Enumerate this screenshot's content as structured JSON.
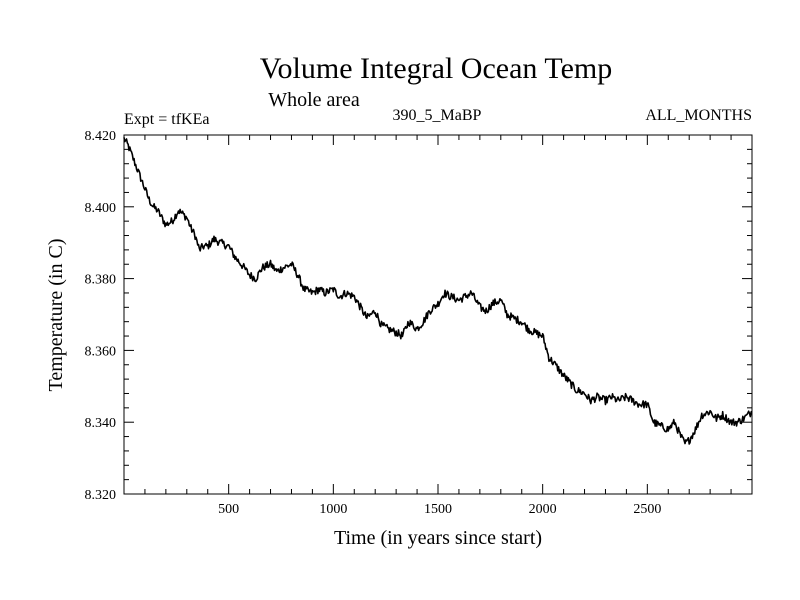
{
  "chart_data": {
    "type": "line",
    "title": "Volume Integral Ocean Temp",
    "subtitle": "Whole area",
    "annotations": {
      "left": "Expt = tfKEa",
      "center": "390_5_MaBP",
      "right": "ALL_MONTHS"
    },
    "xlabel": "Time (in years since start)",
    "ylabel": "Temperature (in C)",
    "xlim": [
      0,
      3000
    ],
    "ylim": [
      8.32,
      8.42
    ],
    "x_ticks": [
      500,
      1000,
      1500,
      2000,
      2500
    ],
    "x_tick_labels": [
      "500",
      "1000",
      "1500",
      "2000",
      "2500"
    ],
    "y_ticks": [
      8.32,
      8.34,
      8.36,
      8.38,
      8.4,
      8.42
    ],
    "y_tick_labels": [
      "8.320",
      "8.340",
      "8.360",
      "8.380",
      "8.400",
      "8.420"
    ],
    "grid": false,
    "series": [
      {
        "color": "#000000",
        "x": [
          0,
          20,
          40,
          60,
          80,
          100,
          120,
          140,
          160,
          180,
          200,
          230,
          260,
          280,
          300,
          320,
          340,
          360,
          380,
          400,
          430,
          460,
          500,
          530,
          560,
          600,
          630,
          660,
          700,
          730,
          760,
          800,
          830,
          860,
          900,
          930,
          960,
          1000,
          1030,
          1060,
          1100,
          1130,
          1160,
          1200,
          1230,
          1260,
          1300,
          1330,
          1360,
          1400,
          1430,
          1460,
          1500,
          1530,
          1560,
          1600,
          1630,
          1660,
          1700,
          1730,
          1760,
          1800,
          1830,
          1860,
          1900,
          1930,
          1960,
          2000,
          2030,
          2060,
          2100,
          2130,
          2160,
          2200,
          2230,
          2260,
          2300,
          2330,
          2360,
          2400,
          2430,
          2460,
          2500,
          2530,
          2560,
          2600,
          2630,
          2660,
          2680,
          2700,
          2730,
          2760,
          2800,
          2830,
          2860,
          2900,
          2930,
          2960,
          3000
        ],
        "y": [
          8.419,
          8.417,
          8.414,
          8.411,
          8.408,
          8.405,
          8.402,
          8.4,
          8.399,
          8.397,
          8.395,
          8.396,
          8.399,
          8.398,
          8.397,
          8.394,
          8.392,
          8.388,
          8.389,
          8.389,
          8.391,
          8.39,
          8.389,
          8.386,
          8.384,
          8.381,
          8.38,
          8.383,
          8.384,
          8.382,
          8.383,
          8.384,
          8.381,
          8.377,
          8.376,
          8.377,
          8.376,
          8.377,
          8.375,
          8.376,
          8.375,
          8.372,
          8.369,
          8.371,
          8.367,
          8.366,
          8.365,
          8.364,
          8.368,
          8.366,
          8.368,
          8.371,
          8.373,
          8.376,
          8.375,
          8.374,
          8.375,
          8.376,
          8.372,
          8.371,
          8.373,
          8.374,
          8.37,
          8.369,
          8.368,
          8.366,
          8.365,
          8.364,
          8.358,
          8.356,
          8.353,
          8.351,
          8.349,
          8.348,
          8.346,
          8.347,
          8.346,
          8.347,
          8.346,
          8.347,
          8.346,
          8.345,
          8.345,
          8.34,
          8.339,
          8.338,
          8.34,
          8.336,
          8.334,
          8.335,
          8.338,
          8.342,
          8.343,
          8.341,
          8.342,
          8.34,
          8.34,
          8.341,
          8.343
        ]
      }
    ]
  }
}
